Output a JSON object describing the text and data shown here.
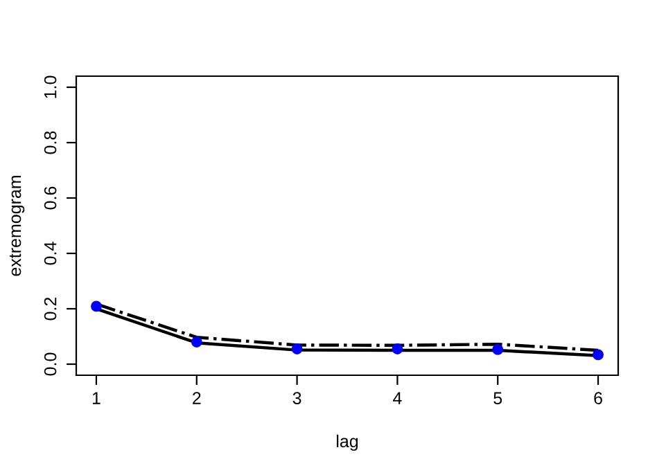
{
  "chart_data": {
    "type": "line",
    "xlabel": "lag",
    "ylabel": "extremogram",
    "x": [
      1,
      2,
      3,
      4,
      5,
      6
    ],
    "series": [
      {
        "color": "#000000",
        "line_style": "solid",
        "marker": "none",
        "values": [
          0.2,
          0.077,
          0.051,
          0.05,
          0.05,
          0.031
        ]
      },
      {
        "color": "#000000",
        "line_style": "dashdot",
        "marker": "none",
        "values": [
          0.217,
          0.097,
          0.069,
          0.068,
          0.072,
          0.05
        ]
      },
      {
        "type": "scatter",
        "color": "#0000ff",
        "marker": "circle",
        "values": [
          0.209,
          0.08,
          0.055,
          0.055,
          0.053,
          0.034
        ]
      }
    ],
    "xlim": [
      0.8,
      6.2
    ],
    "ylim": [
      -0.04,
      1.04
    ],
    "xticks": [
      1,
      2,
      3,
      4,
      5,
      6
    ],
    "yticks": [
      {
        "value": 0,
        "label": "0.0"
      },
      0.2,
      0.4,
      0.6,
      0.8,
      {
        "value": 1,
        "label": "1.0"
      }
    ],
    "grid": false,
    "legend": false
  }
}
